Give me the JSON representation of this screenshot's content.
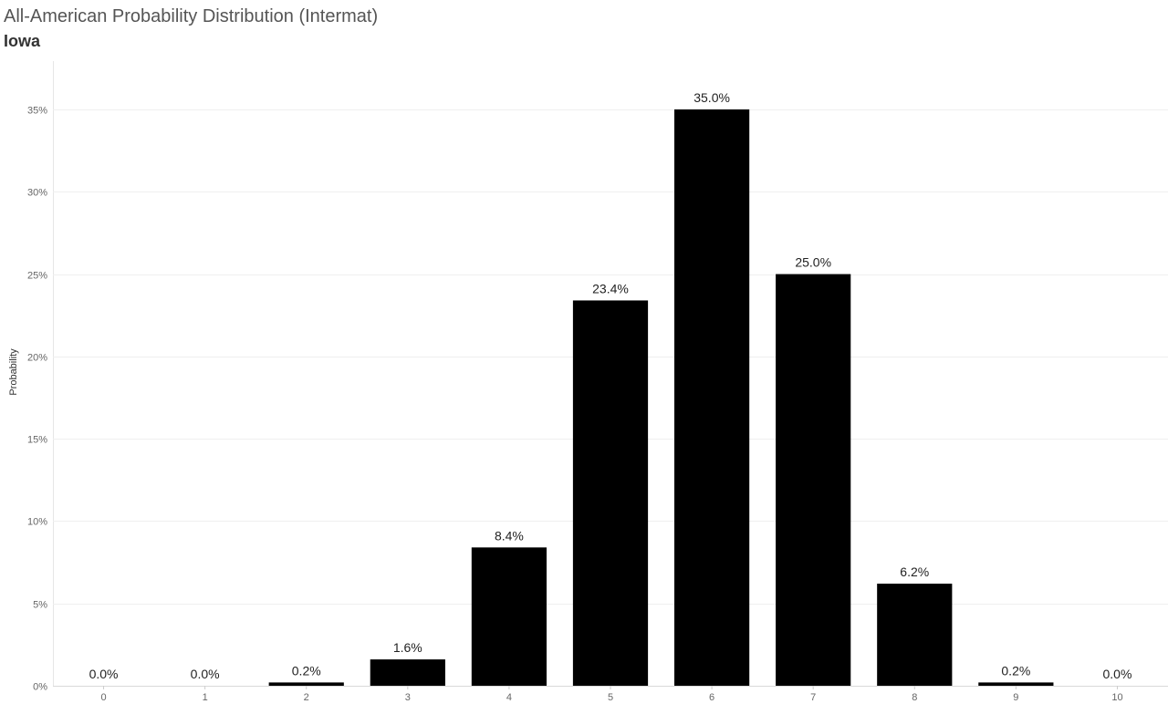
{
  "chart_data": {
    "type": "bar",
    "title": "All-American Probability Distribution (Intermat)",
    "subtitle": "Iowa",
    "xlabel": "",
    "ylabel": "Probability",
    "categories": [
      "0",
      "1",
      "2",
      "3",
      "4",
      "5",
      "6",
      "7",
      "8",
      "9",
      "10"
    ],
    "values": [
      0.0,
      0.0,
      0.2,
      1.6,
      8.4,
      23.4,
      35.0,
      25.0,
      6.2,
      0.2,
      0.0
    ],
    "value_labels": [
      "0.0%",
      "0.0%",
      "0.2%",
      "1.6%",
      "8.4%",
      "23.4%",
      "35.0%",
      "25.0%",
      "6.2%",
      "0.2%",
      "0.0%"
    ],
    "y_ticks": [
      0,
      5,
      10,
      15,
      20,
      25,
      30,
      35
    ],
    "y_tick_labels": [
      "0%",
      "5%",
      "10%",
      "15%",
      "20%",
      "25%",
      "30%",
      "35%"
    ],
    "ylim": [
      0,
      35
    ],
    "grid": true,
    "bar_color": "#000000"
  }
}
